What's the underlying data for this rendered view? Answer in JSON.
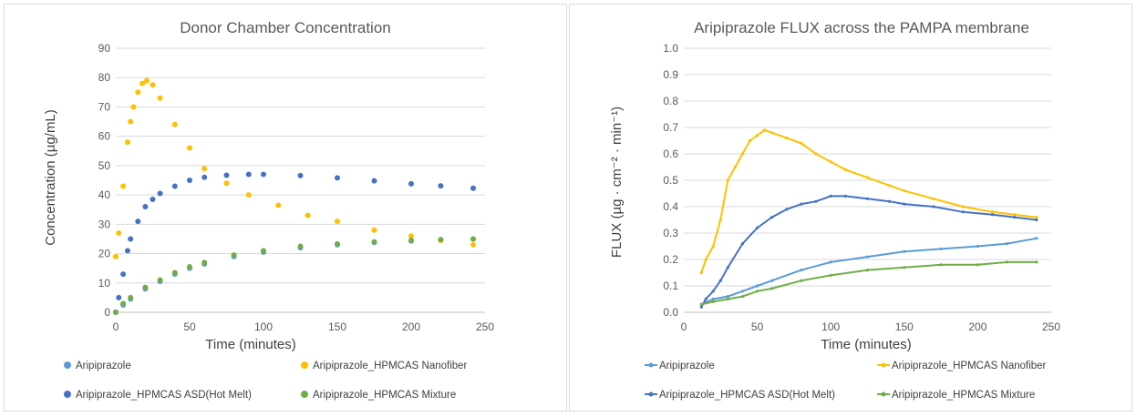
{
  "colors": {
    "aripiprazole_light": "#5b9bd5",
    "hot_melt": "#4472c4",
    "nanofiber": "#ffc000",
    "mixture": "#70ad47",
    "grid": "#d9d9d9",
    "text": "#595959"
  },
  "chart_data": [
    {
      "type": "scatter",
      "title": "Donor Chamber Concentration",
      "xlabel": "Time (minutes)",
      "ylabel": "Concentration (µg/mL)",
      "xlim": [
        0,
        250
      ],
      "ylim": [
        0,
        90
      ],
      "xticks": [
        "0",
        "50",
        "100",
        "150",
        "200",
        "250"
      ],
      "yticks": [
        "0",
        "10",
        "20",
        "30",
        "40",
        "50",
        "60",
        "70",
        "80",
        "90"
      ],
      "grid": "horizontal",
      "legend_position": "bottom",
      "series": [
        {
          "name": "Aripiprazole",
          "color": "#5b9bd5",
          "x": [
            0,
            5,
            10,
            20,
            30,
            40,
            50,
            60,
            80,
            100,
            125,
            150,
            175,
            200,
            220,
            242
          ],
          "y": [
            0,
            2.5,
            4.5,
            8,
            10.5,
            13,
            15,
            16.5,
            19,
            20.5,
            22,
            23,
            23.8,
            24.3,
            24.6,
            25
          ]
        },
        {
          "name": "Aripiprazole_HPMCAS Nanofiber",
          "color": "#ffc000",
          "x": [
            0,
            2,
            5,
            8,
            10,
            12,
            15,
            18,
            21,
            25,
            30,
            40,
            50,
            60,
            75,
            90,
            110,
            130,
            150,
            175,
            200,
            220,
            242
          ],
          "y": [
            19,
            27,
            43,
            58,
            65,
            70,
            75,
            78,
            79,
            77.5,
            73,
            64,
            56,
            49,
            44,
            40,
            36.5,
            33,
            31,
            28,
            26,
            24.5,
            23
          ]
        },
        {
          "name": "Aripiprazole_HPMCAS ASD(Hot Melt)",
          "color": "#4472c4",
          "x": [
            0,
            2,
            5,
            8,
            10,
            15,
            20,
            25,
            30,
            40,
            50,
            60,
            75,
            90,
            100,
            125,
            150,
            175,
            200,
            220,
            242
          ],
          "y": [
            0,
            5,
            13,
            21,
            25,
            31,
            36,
            38.5,
            40.5,
            43,
            45,
            46,
            46.7,
            47,
            47,
            46.6,
            45.8,
            44.8,
            43.8,
            43.1,
            42.3
          ]
        },
        {
          "name": "Aripiprazole_HPMCAS Mixture",
          "color": "#70ad47",
          "x": [
            0,
            5,
            10,
            20,
            30,
            40,
            50,
            60,
            80,
            100,
            125,
            150,
            175,
            200,
            220,
            242
          ],
          "y": [
            0,
            3,
            5,
            8.5,
            11,
            13.5,
            15.5,
            17,
            19.5,
            21,
            22.5,
            23.3,
            24,
            24.5,
            24.8,
            25
          ]
        }
      ]
    },
    {
      "type": "scatter",
      "title": "Aripiprazole FLUX across the PAMPA membrane",
      "xlabel": "Time (minutes)",
      "ylabel": "FLUX (µg · cm⁻² · min⁻¹)",
      "xlim": [
        0,
        250
      ],
      "ylim": [
        0,
        1.0
      ],
      "xticks": [
        "0",
        "50",
        "100",
        "150",
        "200",
        "250"
      ],
      "yticks": [
        "0.0",
        "0.1",
        "0.2",
        "0.3",
        "0.4",
        "0.5",
        "0.6",
        "0.7",
        "0.8",
        "0.9",
        "1.0"
      ],
      "grid": "horizontal",
      "legend_position": "bottom",
      "series": [
        {
          "name": "Aripiprazole",
          "color": "#5b9bd5",
          "x": [
            12,
            20,
            30,
            40,
            50,
            60,
            80,
            100,
            125,
            150,
            175,
            200,
            220,
            240
          ],
          "y": [
            0.03,
            0.05,
            0.06,
            0.08,
            0.1,
            0.12,
            0.16,
            0.19,
            0.21,
            0.23,
            0.24,
            0.25,
            0.26,
            0.28
          ]
        },
        {
          "name": "Aripiprazole_HPMCAS Nanofiber",
          "color": "#ffc000",
          "x": [
            12,
            15,
            20,
            25,
            30,
            35,
            40,
            45,
            50,
            55,
            60,
            70,
            80,
            90,
            100,
            110,
            125,
            140,
            150,
            170,
            190,
            210,
            225,
            240
          ],
          "y": [
            0.15,
            0.2,
            0.25,
            0.35,
            0.5,
            0.55,
            0.6,
            0.65,
            0.67,
            0.69,
            0.68,
            0.66,
            0.64,
            0.6,
            0.57,
            0.54,
            0.51,
            0.48,
            0.46,
            0.43,
            0.4,
            0.38,
            0.37,
            0.36
          ]
        },
        {
          "name": "Aripiprazole_HPMCAS ASD(Hot Melt)",
          "color": "#4472c4",
          "x": [
            12,
            15,
            20,
            25,
            30,
            40,
            50,
            60,
            70,
            80,
            90,
            100,
            110,
            125,
            140,
            150,
            170,
            190,
            210,
            225,
            240
          ],
          "y": [
            0.02,
            0.05,
            0.08,
            0.12,
            0.17,
            0.26,
            0.32,
            0.36,
            0.39,
            0.41,
            0.42,
            0.44,
            0.44,
            0.43,
            0.42,
            0.41,
            0.4,
            0.38,
            0.37,
            0.36,
            0.35
          ]
        },
        {
          "name": "Aripiprazole_HPMCAS Mixture",
          "color": "#70ad47",
          "x": [
            12,
            20,
            30,
            40,
            50,
            60,
            80,
            100,
            125,
            150,
            175,
            200,
            220,
            240
          ],
          "y": [
            0.03,
            0.04,
            0.05,
            0.06,
            0.08,
            0.09,
            0.12,
            0.14,
            0.16,
            0.17,
            0.18,
            0.18,
            0.19,
            0.19
          ]
        }
      ]
    }
  ]
}
